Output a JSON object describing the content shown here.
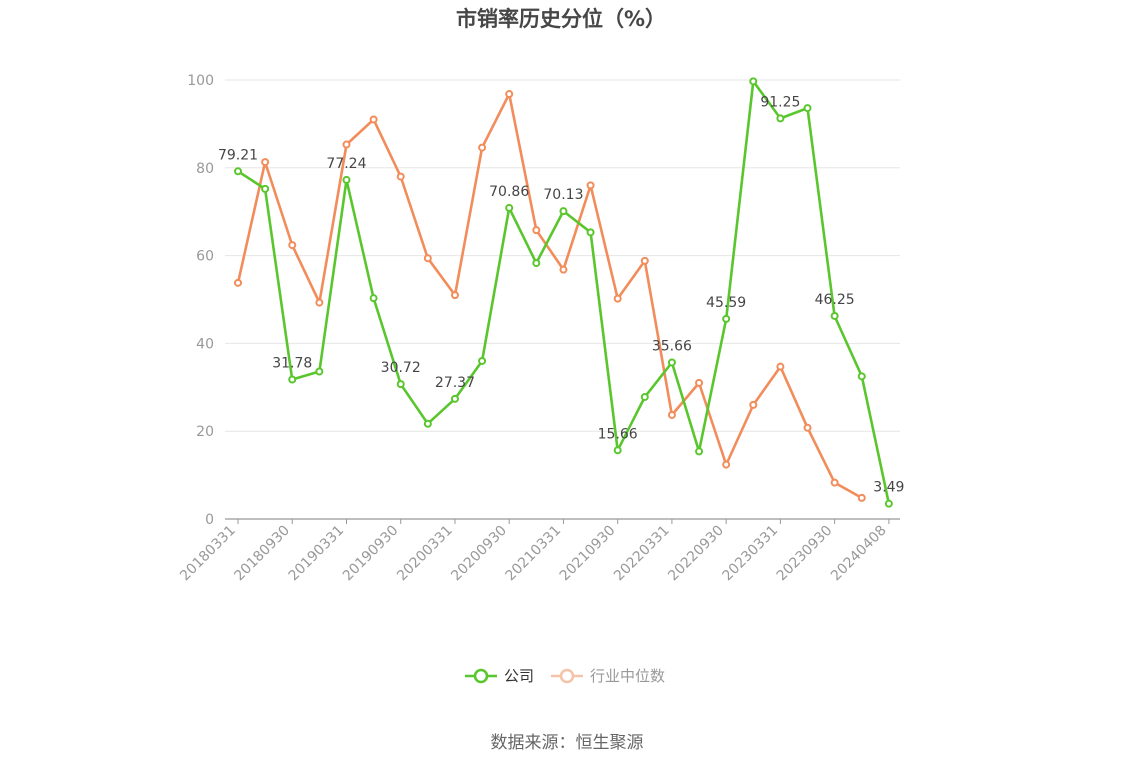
{
  "chart_data": {
    "type": "line",
    "title": "市销率历史分位（%）",
    "source": "数据来源：恒生聚源",
    "ylim": [
      0,
      100
    ],
    "yticks": [
      0,
      20,
      40,
      60,
      80,
      100
    ],
    "xtick_labels": [
      "20180331",
      "20180930",
      "20190331",
      "20190930",
      "20200331",
      "20200930",
      "20210331",
      "20210930",
      "20220331",
      "20220930",
      "20230331",
      "20230930",
      "20240408"
    ],
    "x": [
      "20180331",
      "20180630",
      "20180930",
      "20181231",
      "20190331",
      "20190630",
      "20190930",
      "20191231",
      "20200331",
      "20200630",
      "20200930",
      "20201231",
      "20210331",
      "20210630",
      "20210930",
      "20211231",
      "20220331",
      "20220630",
      "20220930",
      "20221231",
      "20230331",
      "20230630",
      "20230930",
      "20231231",
      "20240408"
    ],
    "grid": true,
    "legend_position": "bottom",
    "series": [
      {
        "name": "公司",
        "color": "#5ac62e",
        "values": [
          79.21,
          75.2,
          31.78,
          33.6,
          77.24,
          50.3,
          30.72,
          21.7,
          27.37,
          36.0,
          70.86,
          58.3,
          70.13,
          65.3,
          15.66,
          27.8,
          35.66,
          15.4,
          45.59,
          99.7,
          91.25,
          93.6,
          46.25,
          32.5,
          3.49
        ],
        "labels": {
          "0": "79.21",
          "2": "31.78",
          "4": "77.24",
          "6": "30.72",
          "8": "27.37",
          "10": "70.86",
          "12": "70.13",
          "14": "15.66",
          "16": "35.66",
          "18": "45.59",
          "20": "91.25",
          "22": "46.25",
          "24": "3.49"
        }
      },
      {
        "name": "行业中位数",
        "color": "#f28c5a",
        "values": [
          53.8,
          81.3,
          62.4,
          49.3,
          85.3,
          91.0,
          78.0,
          59.4,
          51.0,
          84.6,
          96.8,
          65.8,
          56.8,
          76.0,
          50.2,
          58.8,
          23.7,
          31.0,
          12.4,
          26.0,
          34.7,
          20.8,
          8.3,
          4.8,
          null
        ]
      }
    ]
  }
}
